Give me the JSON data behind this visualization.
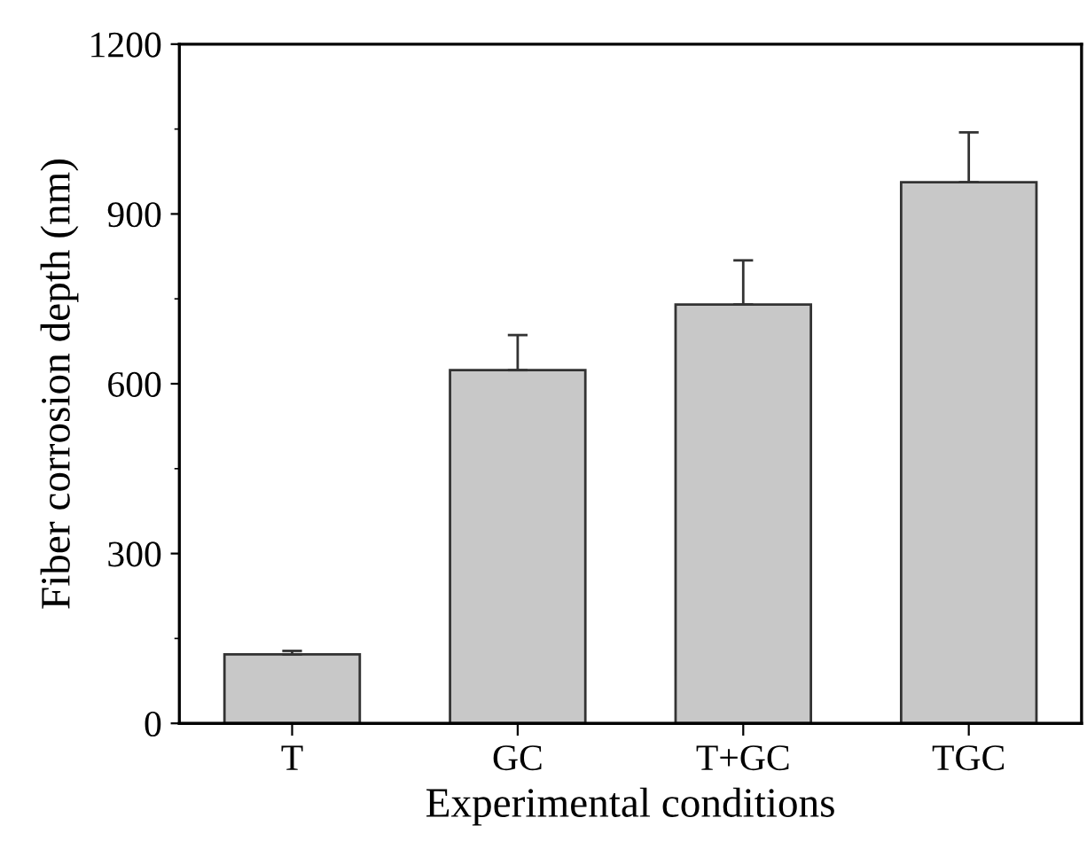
{
  "chart_data": {
    "type": "bar",
    "xlabel": "Experimental conditions",
    "ylabel": "Fiber corrosion depth (nm)",
    "categories": [
      "T",
      "GC",
      "T+GC",
      "TGC"
    ],
    "values": [
      122,
      624,
      740,
      956
    ],
    "errors": [
      [
        122,
        128
      ],
      [
        624,
        686
      ],
      [
        740,
        818
      ],
      [
        956,
        1044
      ]
    ],
    "color": "#c8c8c8",
    "ylim": [
      0,
      1200
    ],
    "yticks": [
      0,
      300,
      600,
      900,
      1200
    ],
    "grid": false,
    "legend": false
  }
}
